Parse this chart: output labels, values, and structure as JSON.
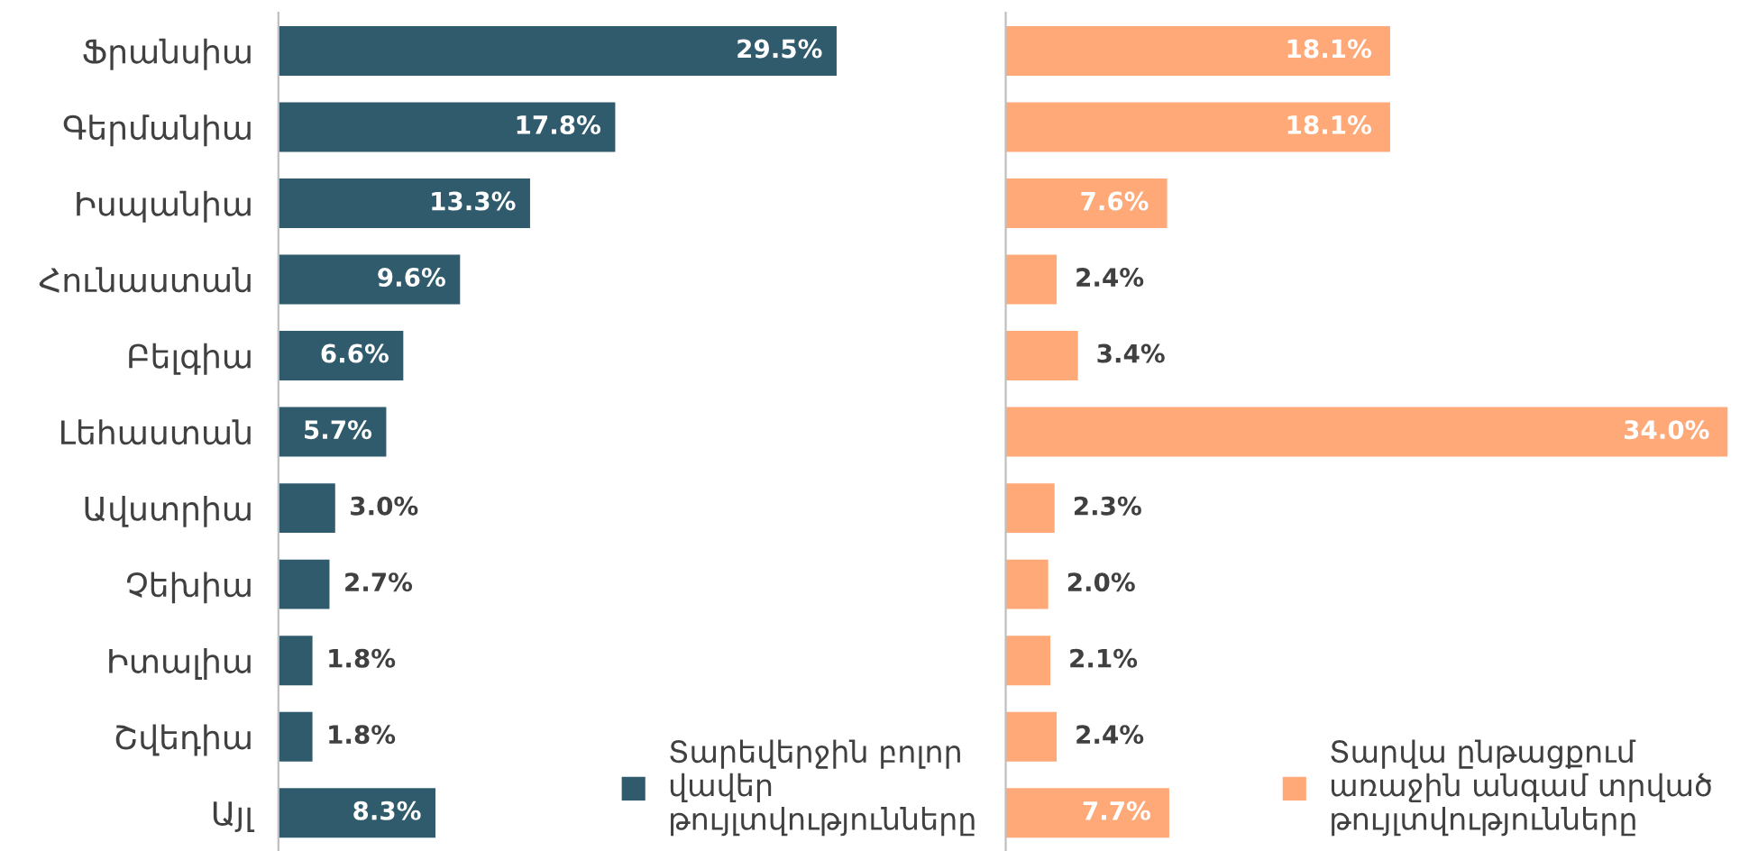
{
  "chart_data": [
    {
      "type": "bar",
      "orientation": "horizontal",
      "categories": [
        "Ֆրանսիա",
        "Գերմանիա",
        "Իսպանիա",
        "Հունաստան",
        "Բելգիա",
        "Լեհաստան",
        "Ավստրիա",
        "Չեխիա",
        "Իտալիա",
        "Շվեդիա",
        "Այլ"
      ],
      "series": [
        {
          "name": "Տարեվերջին բոլոր վավեր թույլտվությունները",
          "color": "#2f5b6c",
          "values": [
            29.5,
            17.8,
            13.3,
            9.6,
            6.6,
            5.7,
            3.0,
            2.7,
            1.8,
            1.8,
            8.3
          ],
          "value_labels": [
            "29.5%",
            "17.8%",
            "13.3%",
            "9.6%",
            "6.6%",
            "5.7%",
            "3.0%",
            "2.7%",
            "1.8%",
            "1.8%",
            "8.3%"
          ]
        }
      ],
      "legend": "bottom right"
    },
    {
      "type": "bar",
      "orientation": "horizontal",
      "categories": [
        null,
        null,
        null,
        null,
        null,
        null,
        null,
        null,
        null,
        null,
        null
      ],
      "series": [
        {
          "name": "Տարվա ընթացքում առաջին անգամ տրված թույլտվությունները",
          "color": "#ffa978",
          "values": [
            18.1,
            18.1,
            7.6,
            2.4,
            3.4,
            34.0,
            2.3,
            2.0,
            2.1,
            2.4,
            7.7
          ],
          "value_labels": [
            "18.1%",
            "18.1%",
            "7.6%",
            "2.4%",
            "3.4%",
            "34.0%",
            "2.3%",
            "2.0%",
            "2.1%",
            "2.4%",
            "7.7%"
          ]
        }
      ],
      "legend": "bottom right"
    }
  ]
}
